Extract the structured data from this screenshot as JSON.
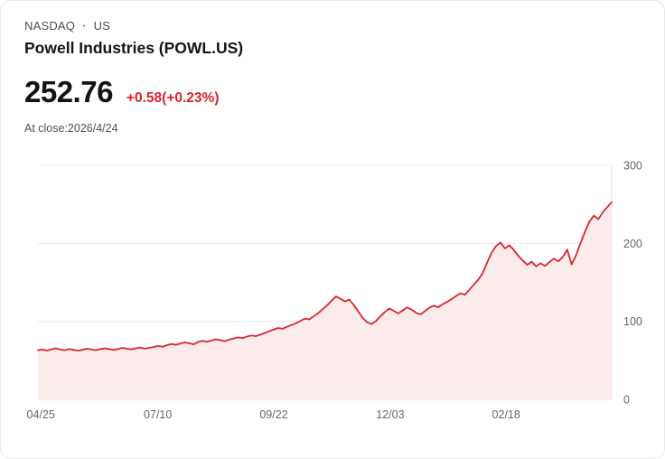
{
  "header": {
    "exchange": "NASDAQ",
    "separator": "·",
    "region": "US",
    "title": "Powell Industries (POWL.US)"
  },
  "quote": {
    "price": "252.76",
    "change": "+0.58(+0.23%)",
    "as_of": "At close:2026/4/24"
  },
  "colors": {
    "line": "#d9272f",
    "fill": "#fcebeb",
    "change_text": "#d9232e",
    "grid": "#ececec",
    "baseline": "#d8d8d8",
    "right_border": "#e3e3e3",
    "axis_text": "#666666"
  },
  "chart_data": {
    "type": "area",
    "series_name": "POWL.US close price",
    "x_tick_labels": [
      "04/25",
      "07/10",
      "09/22",
      "12/03",
      "02/18"
    ],
    "x_tick_positions": [
      0.005,
      0.209,
      0.411,
      0.614,
      0.816
    ],
    "y_ticks": [
      0,
      100,
      200,
      300
    ],
    "ylim": [
      0,
      300
    ],
    "y_axis_side": "right",
    "grid": true,
    "values": [
      63,
      64,
      62.5,
      64,
      65.5,
      64,
      63,
      64.5,
      63.5,
      62.5,
      63.5,
      65,
      64,
      63,
      64.5,
      65.5,
      64.5,
      63.5,
      64.5,
      66,
      65,
      64,
      65.5,
      66.5,
      65,
      66,
      67,
      68.5,
      67.5,
      69.5,
      71,
      70,
      71.5,
      73,
      72,
      70.5,
      73.5,
      75,
      74,
      75.5,
      77,
      76,
      74.5,
      76.5,
      78,
      79.5,
      78.5,
      80.5,
      82,
      81,
      83,
      85,
      87.5,
      89.5,
      91.5,
      90.5,
      93,
      95.5,
      97.5,
      100.5,
      103.5,
      102.5,
      106.5,
      110.5,
      115.5,
      120.5,
      126.5,
      132,
      129,
      125.5,
      128,
      121,
      113,
      104.5,
      99,
      96.5,
      100.5,
      106.5,
      112,
      116.5,
      113.5,
      110,
      114,
      118,
      115,
      111,
      109,
      113,
      117.5,
      120,
      118,
      122,
      125,
      128.5,
      132.5,
      136,
      134,
      140.5,
      147,
      153.5,
      162,
      175.5,
      188,
      196.5,
      201,
      193.5,
      197.5,
      191.5,
      184,
      178,
      172.5,
      176.5,
      170.5,
      174.5,
      171,
      176,
      180.5,
      177,
      182.5,
      192,
      173,
      185,
      200.5,
      215,
      228,
      235.5,
      231,
      240,
      246.5,
      252.76
    ]
  }
}
